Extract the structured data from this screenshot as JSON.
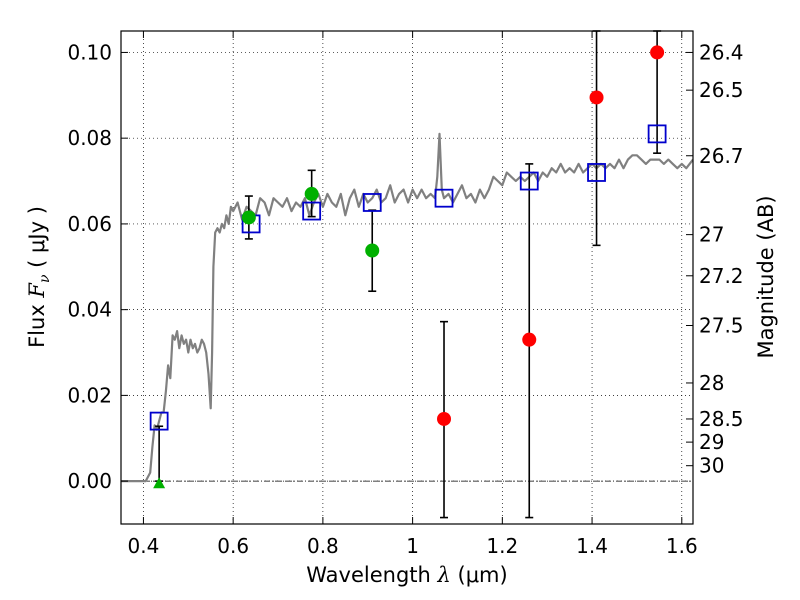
{
  "chart_data": {
    "type": "scatter",
    "xlabel": {
      "prefix": "Wavelength  ",
      "symbol": "λ",
      "unit": " (μm)"
    },
    "ylabel": {
      "prefix": "Flux  ",
      "symbol": "F",
      "subscript": "ν",
      "unit": "  ( μJy )"
    },
    "y2label": "Magnitude (AB)",
    "xlim": [
      0.35,
      1.625
    ],
    "ylim": [
      -0.01,
      0.105
    ],
    "x_ticks": [
      0.4,
      0.6,
      0.8,
      1.0,
      1.2,
      1.4,
      1.6
    ],
    "x_tick_labels": [
      "0.4",
      "0.6",
      "0.8",
      "1",
      "1.2",
      "1.4",
      "1.6"
    ],
    "y_ticks": [
      0.0,
      0.02,
      0.04,
      0.06,
      0.08,
      0.1
    ],
    "y_tick_labels": [
      "0.00",
      "0.02",
      "0.04",
      "0.06",
      "0.08",
      "0.10"
    ],
    "y2_ticks": [
      {
        "label": "26.4",
        "flux": 0.1
      },
      {
        "label": "26.5",
        "flux": 0.0912
      },
      {
        "label": "26.7",
        "flux": 0.0759
      },
      {
        "label": "27",
        "flux": 0.0575
      },
      {
        "label": "27.2",
        "flux": 0.0479
      },
      {
        "label": "27.5",
        "flux": 0.0363
      },
      {
        "label": "28",
        "flux": 0.0229
      },
      {
        "label": "28.5",
        "flux": 0.0145
      },
      {
        "label": "29",
        "flux": 0.0091
      },
      {
        "label": "30",
        "flux": 0.0036
      }
    ],
    "grid": true,
    "zero_line": true,
    "model_spectrum": {
      "color": "#808080",
      "x": [
        0.35,
        0.405,
        0.415,
        0.42,
        0.425,
        0.43,
        0.435,
        0.44,
        0.445,
        0.45,
        0.455,
        0.46,
        0.465,
        0.47,
        0.475,
        0.48,
        0.485,
        0.49,
        0.495,
        0.5,
        0.505,
        0.51,
        0.515,
        0.52,
        0.525,
        0.53,
        0.535,
        0.54,
        0.545,
        0.55,
        0.553,
        0.556,
        0.56,
        0.565,
        0.57,
        0.575,
        0.58,
        0.585,
        0.59,
        0.595,
        0.6,
        0.61,
        0.62,
        0.63,
        0.64,
        0.65,
        0.66,
        0.67,
        0.68,
        0.69,
        0.7,
        0.71,
        0.72,
        0.73,
        0.74,
        0.75,
        0.76,
        0.77,
        0.78,
        0.79,
        0.8,
        0.81,
        0.82,
        0.83,
        0.84,
        0.85,
        0.86,
        0.87,
        0.88,
        0.89,
        0.9,
        0.91,
        0.92,
        0.93,
        0.94,
        0.95,
        0.96,
        0.97,
        0.98,
        0.99,
        1.0,
        1.01,
        1.02,
        1.03,
        1.04,
        1.05,
        1.055,
        1.06,
        1.065,
        1.07,
        1.08,
        1.09,
        1.1,
        1.11,
        1.12,
        1.13,
        1.14,
        1.15,
        1.16,
        1.17,
        1.18,
        1.19,
        1.2,
        1.21,
        1.22,
        1.23,
        1.24,
        1.25,
        1.26,
        1.27,
        1.28,
        1.29,
        1.3,
        1.31,
        1.32,
        1.33,
        1.34,
        1.35,
        1.36,
        1.37,
        1.38,
        1.39,
        1.4,
        1.41,
        1.42,
        1.43,
        1.44,
        1.45,
        1.46,
        1.47,
        1.48,
        1.49,
        1.5,
        1.51,
        1.52,
        1.53,
        1.54,
        1.55,
        1.56,
        1.57,
        1.58,
        1.59,
        1.6,
        1.61,
        1.625
      ],
      "y": [
        0.0,
        0.0,
        0.002,
        0.008,
        0.013,
        0.012,
        0.014,
        0.016,
        0.016,
        0.021,
        0.027,
        0.024,
        0.034,
        0.033,
        0.035,
        0.031,
        0.034,
        0.032,
        0.033,
        0.03,
        0.033,
        0.031,
        0.032,
        0.03,
        0.031,
        0.033,
        0.032,
        0.03,
        0.025,
        0.017,
        0.03,
        0.05,
        0.058,
        0.059,
        0.058,
        0.06,
        0.059,
        0.062,
        0.06,
        0.064,
        0.063,
        0.065,
        0.061,
        0.064,
        0.063,
        0.062,
        0.066,
        0.065,
        0.062,
        0.066,
        0.065,
        0.064,
        0.066,
        0.063,
        0.065,
        0.064,
        0.066,
        0.062,
        0.065,
        0.067,
        0.064,
        0.067,
        0.065,
        0.064,
        0.067,
        0.062,
        0.066,
        0.068,
        0.064,
        0.067,
        0.065,
        0.066,
        0.068,
        0.065,
        0.066,
        0.069,
        0.065,
        0.067,
        0.068,
        0.065,
        0.068,
        0.066,
        0.068,
        0.066,
        0.067,
        0.066,
        0.071,
        0.081,
        0.068,
        0.066,
        0.067,
        0.065,
        0.067,
        0.069,
        0.066,
        0.067,
        0.065,
        0.068,
        0.066,
        0.068,
        0.071,
        0.07,
        0.069,
        0.072,
        0.071,
        0.07,
        0.071,
        0.07,
        0.071,
        0.072,
        0.07,
        0.072,
        0.071,
        0.073,
        0.072,
        0.074,
        0.072,
        0.073,
        0.072,
        0.074,
        0.072,
        0.073,
        0.074,
        0.073,
        0.074,
        0.073,
        0.074,
        0.073,
        0.075,
        0.073,
        0.075,
        0.076,
        0.076,
        0.075,
        0.074,
        0.075,
        0.075,
        0.075,
        0.074,
        0.075,
        0.074,
        0.073,
        0.074,
        0.073,
        0.075
      ]
    },
    "series": [
      {
        "marker": "square",
        "color": "#0000cc",
        "points": [
          {
            "x": 0.435,
            "y": 0.014
          },
          {
            "x": 0.64,
            "y": 0.06
          },
          {
            "x": 0.775,
            "y": 0.063
          },
          {
            "x": 0.91,
            "y": 0.065
          },
          {
            "x": 1.07,
            "y": 0.066
          },
          {
            "x": 1.26,
            "y": 0.07
          },
          {
            "x": 1.41,
            "y": 0.072
          },
          {
            "x": 1.545,
            "y": 0.081
          }
        ]
      },
      {
        "marker": "circle",
        "color": "#00b000",
        "points": [
          {
            "x": 0.635,
            "y": 0.0615,
            "yerr_low": 0.0565,
            "yerr_high": 0.0665
          },
          {
            "x": 0.775,
            "y": 0.067,
            "yerr_low": 0.0617,
            "yerr_high": 0.0725
          },
          {
            "x": 0.91,
            "y": 0.0538,
            "yerr_low": 0.0443,
            "yerr_high": 0.0632
          }
        ]
      },
      {
        "marker": "triangle",
        "color": "#00b000",
        "points": [
          {
            "x": 0.435,
            "y": -0.0005,
            "yerr_low": 0.0,
            "yerr_high": 0.0128
          }
        ]
      },
      {
        "marker": "circle",
        "color": "#ff0000",
        "points": [
          {
            "x": 1.07,
            "y": 0.0145,
            "yerr_low": -0.0085,
            "yerr_high": 0.0372
          },
          {
            "x": 1.26,
            "y": 0.033,
            "yerr_low": -0.0085,
            "yerr_high": 0.074
          },
          {
            "x": 1.41,
            "y": 0.0895,
            "yerr_low": 0.055,
            "yerr_high": 0.105
          },
          {
            "x": 1.545,
            "y": 0.1,
            "yerr_low": 0.0765,
            "yerr_high": 0.105
          }
        ]
      }
    ]
  }
}
